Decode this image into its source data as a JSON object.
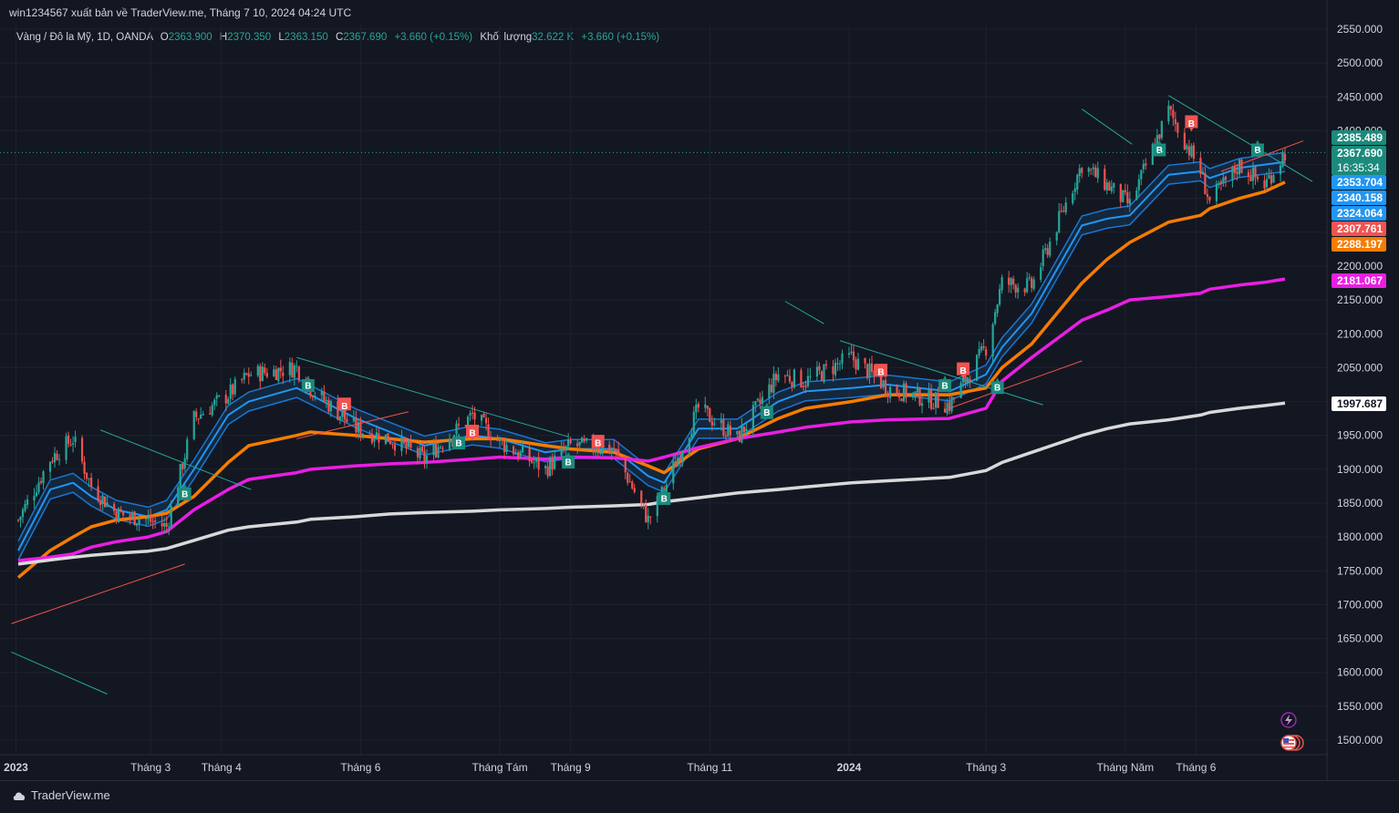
{
  "header": {
    "publisher_text": "win1234567 xuất bản về TraderView.me, Tháng 7 10, 2024 04:24 UTC"
  },
  "legend": {
    "symbol": "Vàng / Đô la Mỹ, 1D, OANDA",
    "open_label": "O",
    "open": "2363.900",
    "high_label": "H",
    "high": "2370.350",
    "low_label": "L",
    "low": "2363.150",
    "close_label": "C",
    "close": "2367.690",
    "change": "+3.660 (+0.15%)",
    "volume_label": "Khối lượng",
    "volume": "32.622 K",
    "volume_change": "+3.660 (+0.15%)"
  },
  "footer": {
    "brand": "TraderView.me",
    "brand_icon": "cloud-logo-icon"
  },
  "status_icons": [
    "lightning-icon",
    "us-flag-icon"
  ],
  "colors": {
    "background": "#131722",
    "grid": "#1e222d",
    "text": "#d1d4dc",
    "up": "#26a69a",
    "down": "#ef5350",
    "ema_blue": "#2196f3",
    "orange": "#f57c00",
    "magenta": "#e91ee3",
    "white_ma": "#d9d9d9",
    "buy_marker": "#1b8a7c",
    "sell_marker": "#f05350"
  },
  "chart_data": {
    "type": "candlestick",
    "title": "Vàng / Đô la Mỹ, 1D, OANDA",
    "timeframe": "1D",
    "x_labels": [
      "2023",
      "Tháng 3",
      "Tháng 4",
      "Tháng 6",
      "Tháng Tám",
      "Tháng 9",
      "Tháng 11",
      "2024",
      "Tháng 3",
      "Tháng Năm",
      "Tháng 6"
    ],
    "x_label_dates": [
      "2023-01-01",
      "2023-03-01",
      "2023-04-01",
      "2023-06-01",
      "2023-08-01",
      "2023-09-01",
      "2023-11-01",
      "2024-01-01",
      "2024-03-01",
      "2024-05-01",
      "2024-06-01"
    ],
    "y_ticks": [
      "2550.000",
      "2500.000",
      "2450.000",
      "2400.000",
      "2350.000",
      "2300.000",
      "2250.000",
      "2200.000",
      "2150.000",
      "2100.000",
      "2050.000",
      "2000.000",
      "1950.000",
      "1900.000",
      "1850.000",
      "1800.000",
      "1750.000",
      "1700.000",
      "1650.000",
      "1600.000",
      "1550.000",
      "1500.000"
    ],
    "ylim": [
      1475,
      2570
    ],
    "price_series": {
      "name": "XAUUSD",
      "dates": [
        "2023-01-02",
        "2023-01-16",
        "2023-01-26",
        "2023-02-03",
        "2023-02-14",
        "2023-02-28",
        "2023-03-08",
        "2023-03-20",
        "2023-04-04",
        "2023-04-13",
        "2023-05-04",
        "2023-05-10",
        "2023-05-30",
        "2023-06-14",
        "2023-06-29",
        "2023-07-20",
        "2023-08-01",
        "2023-08-21",
        "2023-09-01",
        "2023-09-20",
        "2023-10-05",
        "2023-10-12",
        "2023-10-27",
        "2023-11-13",
        "2023-12-01",
        "2023-12-13",
        "2024-01-02",
        "2024-01-18",
        "2024-02-14",
        "2024-03-01",
        "2024-03-08",
        "2024-03-21",
        "2024-04-12",
        "2024-04-23",
        "2024-05-03",
        "2024-05-20",
        "2024-06-03",
        "2024-06-07",
        "2024-06-20",
        "2024-07-01",
        "2024-07-10"
      ],
      "close": [
        1825,
        1915,
        1945,
        1875,
        1835,
        1825,
        1815,
        1975,
        2010,
        2040,
        2050,
        2020,
        1960,
        1945,
        1915,
        1980,
        1940,
        1900,
        1935,
        1930,
        1825,
        1870,
        1990,
        1945,
        2040,
        2030,
        2065,
        2020,
        1995,
        2080,
        2175,
        2170,
        2350,
        2320,
        2290,
        2430,
        2340,
        2295,
        2350,
        2320,
        2367.69
      ]
    },
    "indicators": [
      {
        "name": "EMA ribbon",
        "color": "#2196f3",
        "values": [
          1780,
          1870,
          1880,
          1860,
          1840,
          1830,
          1840,
          1900,
          1980,
          2000,
          2020,
          2010,
          1975,
          1955,
          1935,
          1950,
          1945,
          1925,
          1930,
          1930,
          1890,
          1880,
          1960,
          1960,
          2000,
          2015,
          2020,
          2025,
          2015,
          2040,
          2080,
          2130,
          2260,
          2270,
          2275,
          2335,
          2340,
          2330,
          2345,
          2350,
          2353.704
        ]
      },
      {
        "name": "MA orange",
        "color": "#f57c00",
        "values": [
          1740,
          1780,
          1800,
          1815,
          1825,
          1830,
          1835,
          1860,
          1910,
          1935,
          1950,
          1955,
          1950,
          1945,
          1940,
          1945,
          1945,
          1935,
          1930,
          1925,
          1905,
          1895,
          1930,
          1945,
          1975,
          1990,
          2000,
          2010,
          2010,
          2020,
          2050,
          2085,
          2175,
          2210,
          2235,
          2265,
          2275,
          2285,
          2300,
          2310,
          2324.064
        ]
      },
      {
        "name": "MA magenta",
        "color": "#e91ee3",
        "values": [
          1765,
          1770,
          1775,
          1785,
          1793,
          1800,
          1808,
          1840,
          1870,
          1885,
          1895,
          1900,
          1905,
          1908,
          1910,
          1915,
          1918,
          1915,
          1918,
          1917,
          1912,
          1918,
          1932,
          1945,
          1955,
          1962,
          1970,
          1973,
          1975,
          1990,
          2030,
          2065,
          2120,
          2135,
          2150,
          2155,
          2160,
          2166,
          2172,
          2176,
          2181.067
        ]
      },
      {
        "name": "MA white",
        "color": "#d9d9d9",
        "values": [
          1760,
          1766,
          1770,
          1773,
          1776,
          1779,
          1783,
          1795,
          1810,
          1815,
          1822,
          1826,
          1830,
          1834,
          1836,
          1838,
          1840,
          1842,
          1844,
          1846,
          1848,
          1852,
          1858,
          1865,
          1870,
          1874,
          1880,
          1883,
          1888,
          1898,
          1910,
          1925,
          1950,
          1960,
          1967,
          1973,
          1980,
          1984,
          1990,
          1994,
          1997.687
        ]
      }
    ],
    "signals": [
      {
        "type": "buy",
        "label": "B",
        "date": "2023-03-16",
        "price": 1865
      },
      {
        "type": "buy",
        "label": "B",
        "date": "2023-05-09",
        "price": 2025
      },
      {
        "type": "sell",
        "label": "B",
        "date": "2023-05-25",
        "price": 1995
      },
      {
        "type": "buy",
        "label": "B",
        "date": "2023-07-14",
        "price": 1940
      },
      {
        "type": "sell",
        "label": "B",
        "date": "2023-07-20",
        "price": 1955
      },
      {
        "type": "buy",
        "label": "B",
        "date": "2023-08-31",
        "price": 1912
      },
      {
        "type": "sell",
        "label": "B",
        "date": "2023-09-13",
        "price": 1940
      },
      {
        "type": "buy",
        "label": "B",
        "date": "2023-10-12",
        "price": 1858
      },
      {
        "type": "buy",
        "label": "B",
        "date": "2023-11-26",
        "price": 1985
      },
      {
        "type": "sell",
        "label": "B",
        "date": "2024-01-15",
        "price": 2045
      },
      {
        "type": "buy",
        "label": "B",
        "date": "2024-02-12",
        "price": 2025
      },
      {
        "type": "sell",
        "label": "B",
        "date": "2024-02-20",
        "price": 2047
      },
      {
        "type": "buy",
        "label": "B",
        "date": "2024-03-06",
        "price": 2022
      },
      {
        "type": "buy",
        "label": "B",
        "date": "2024-05-16",
        "price": 2373
      },
      {
        "type": "sell",
        "label": "B",
        "date": "2024-05-30",
        "price": 2412
      },
      {
        "type": "buy",
        "label": "B",
        "date": "2024-06-28",
        "price": 2373
      }
    ],
    "price_labels": [
      {
        "value": "2385.489",
        "color": "#1b8a7c",
        "text_color": "#ffffff"
      },
      {
        "value": "2367.690",
        "color": "#1b8a7c",
        "text_color": "#ffffff",
        "countdown": "16:35:34"
      },
      {
        "value": "2353.704",
        "color": "#2196f3",
        "text_color": "#ffffff"
      },
      {
        "value": "2340.158",
        "color": "#2196f3",
        "text_color": "#ffffff"
      },
      {
        "value": "2324.064",
        "color": "#2196f3",
        "text_color": "#ffffff"
      },
      {
        "value": "2307.761",
        "color": "#f05350",
        "text_color": "#ffffff"
      },
      {
        "value": "2288.197",
        "color": "#f57c00",
        "text_color": "#ffffff"
      },
      {
        "value": "2181.067",
        "color": "#e91ee3",
        "text_color": "#ffffff"
      },
      {
        "value": "1997.687",
        "color": "#ffffff",
        "text_color": "#131722"
      }
    ],
    "trendlines": [
      {
        "color": "#26a69a",
        "points": [
          [
            "2022-12-30",
            1630
          ],
          [
            "2023-02-10",
            1568
          ]
        ]
      },
      {
        "color": "#ef5350",
        "points": [
          [
            "2022-12-30",
            1672
          ],
          [
            "2023-03-16",
            1760
          ]
        ]
      },
      {
        "color": "#26a69a",
        "points": [
          [
            "2023-02-07",
            1958
          ],
          [
            "2023-04-14",
            1870
          ]
        ]
      },
      {
        "color": "#26a69a",
        "points": [
          [
            "2023-05-04",
            2065
          ],
          [
            "2023-08-31",
            1948
          ]
        ]
      },
      {
        "color": "#ef5350",
        "points": [
          [
            "2023-05-04",
            1945
          ],
          [
            "2023-06-22",
            1985
          ]
        ]
      },
      {
        "color": "#26a69a",
        "points": [
          [
            "2023-12-04",
            2148
          ],
          [
            "2023-12-21",
            2115
          ]
        ]
      },
      {
        "color": "#26a69a",
        "points": [
          [
            "2023-12-28",
            2090
          ],
          [
            "2024-03-26",
            1995
          ]
        ]
      },
      {
        "color": "#ef5350",
        "points": [
          [
            "2024-02-14",
            1990
          ],
          [
            "2024-04-12",
            2060
          ]
        ]
      },
      {
        "color": "#26a69a",
        "points": [
          [
            "2024-04-12",
            2432
          ],
          [
            "2024-05-04",
            2380
          ]
        ]
      },
      {
        "color": "#26a69a",
        "points": [
          [
            "2024-05-20",
            2452
          ],
          [
            "2024-07-22",
            2325
          ]
        ]
      },
      {
        "color": "#ef5350",
        "points": [
          [
            "2024-06-12",
            2340
          ],
          [
            "2024-07-18",
            2385
          ]
        ]
      }
    ],
    "grid": true
  }
}
